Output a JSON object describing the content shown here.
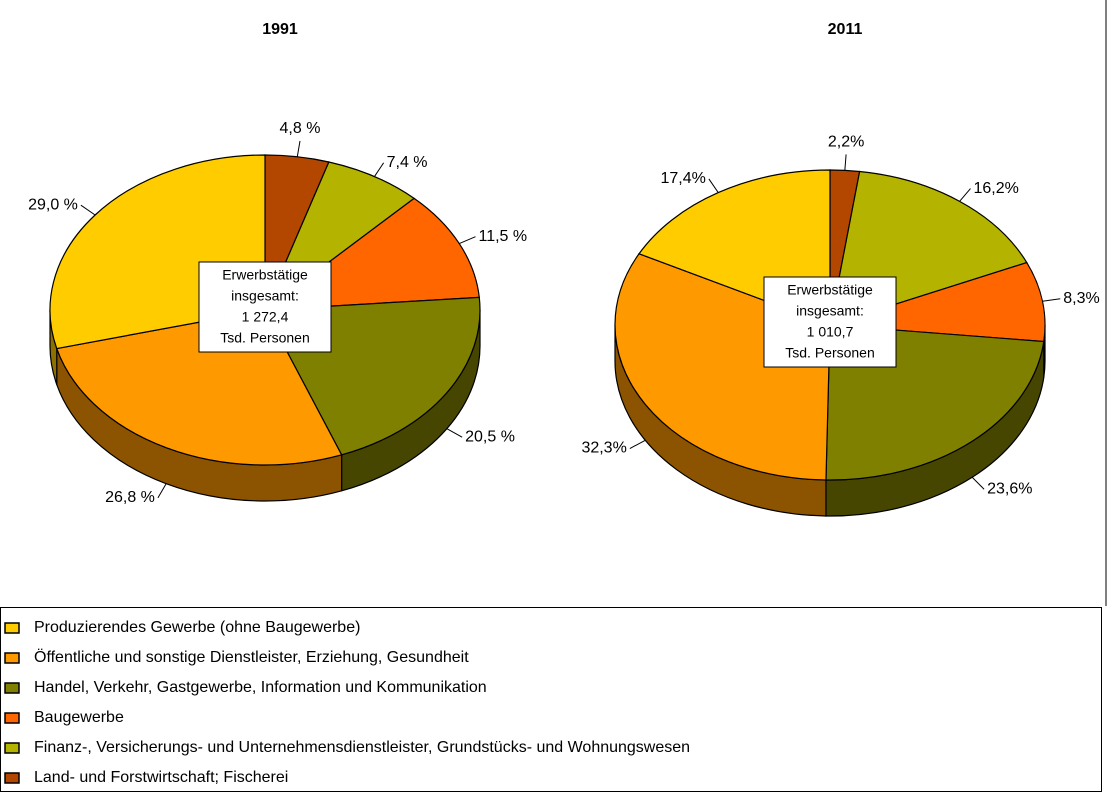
{
  "legend": {
    "labels": [
      "Produzierendes Gewerbe (ohne Baugewerbe)",
      "Öffentliche und sonstige Dienstleister, Erziehung, Gesundheit",
      "Handel, Verkehr, Gastgewerbe, Information und Kommunikation",
      "Baugewerbe",
      "Finanz-, Versicherungs- und Unternehmensdienstleister, Grundstücks- und Wohnungswesen",
      "Land- und Forstwirtschaft; Fischerei"
    ],
    "colors": [
      "#ffcc00",
      "#ff9900",
      "#808000",
      "#ff6600",
      "#b3b300",
      "#b34700"
    ]
  },
  "chart_data": [
    {
      "type": "pie",
      "title": "1991",
      "values": [
        29.0,
        26.8,
        20.5,
        11.5,
        7.4,
        4.8
      ],
      "value_labels": [
        "29,0 %",
        "26,8 %",
        "20,5 %",
        "11,5 %",
        "7,4 %",
        "4,8 %"
      ],
      "annotation": [
        "Erwerbstätige",
        "insgesamt:",
        "1 272,4",
        "Tsd. Personen"
      ]
    },
    {
      "type": "pie",
      "title": "2011",
      "values": [
        17.4,
        32.3,
        23.6,
        8.3,
        16.2,
        2.2
      ],
      "value_labels": [
        "17,4%",
        "32,3%",
        "23,6%",
        "8,3%",
        "16,2%",
        "2,2%"
      ],
      "annotation": [
        "Erwerbstätige",
        "insgesamt:",
        "1 010,7",
        "Tsd. Personen"
      ]
    }
  ]
}
